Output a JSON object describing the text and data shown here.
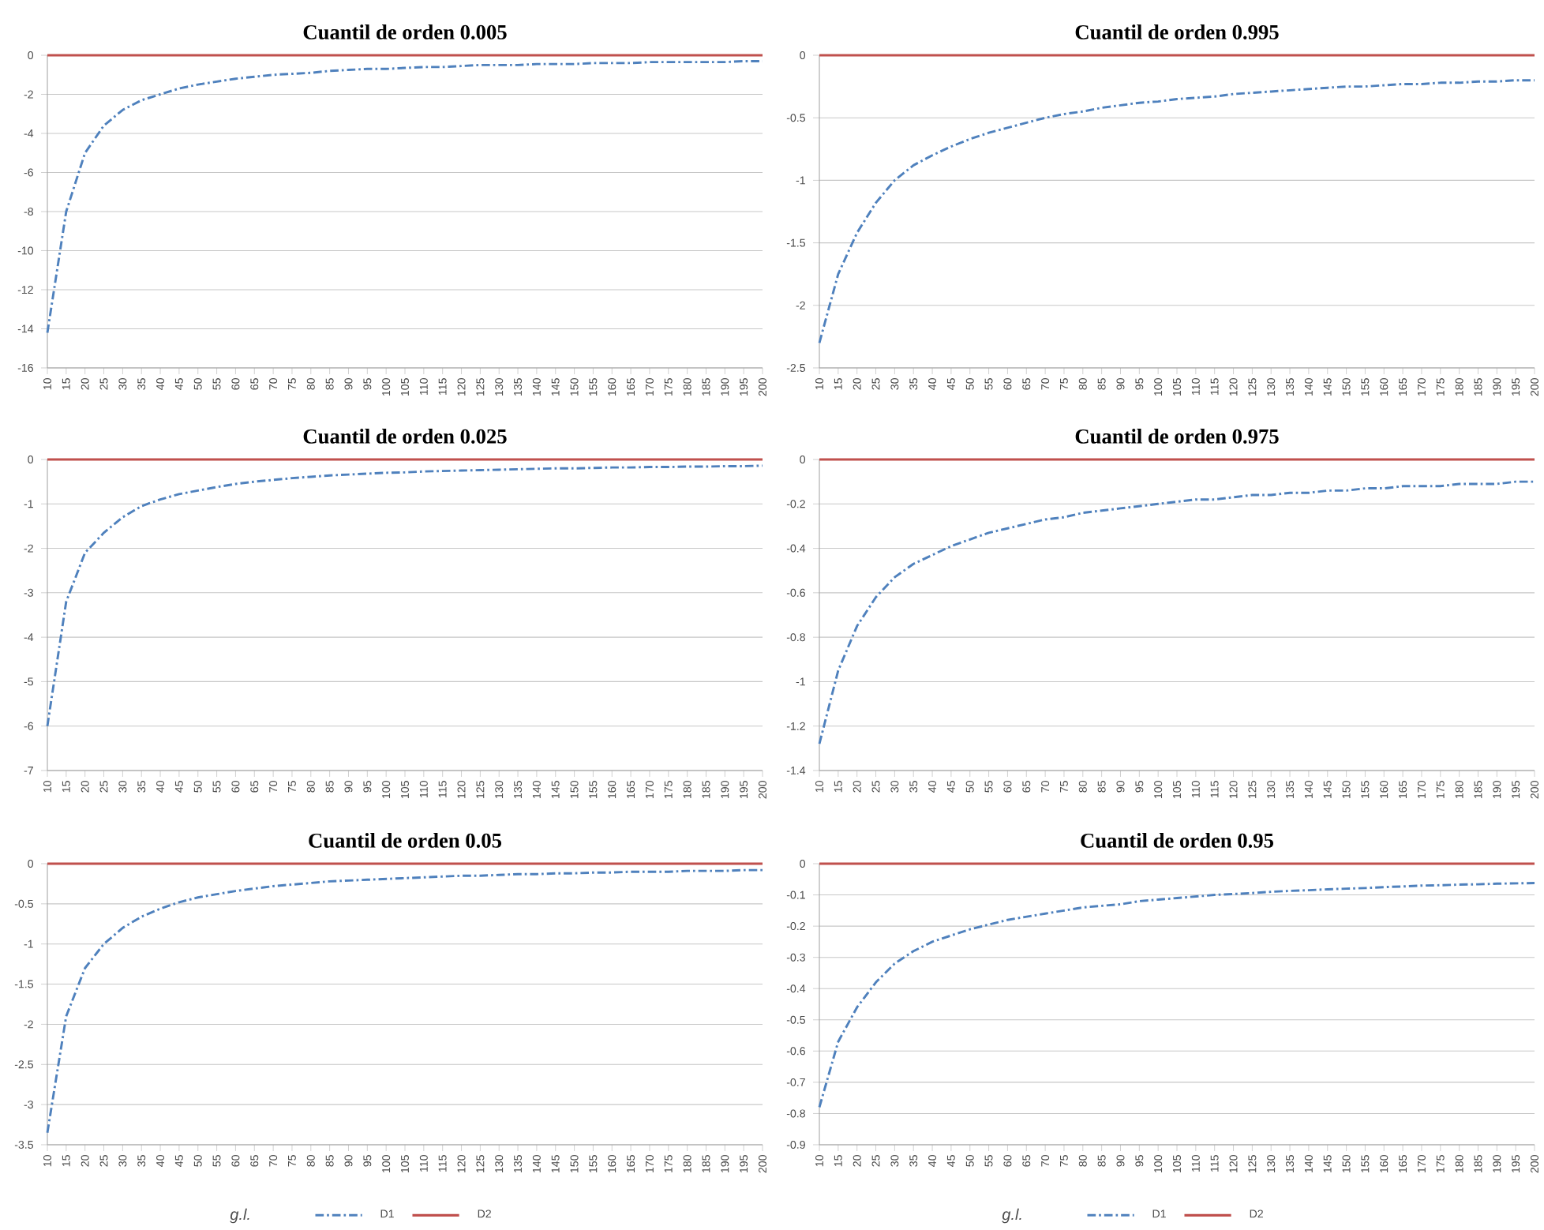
{
  "chart_data": [
    {
      "type": "line",
      "title": "Cuantil de orden 0.005",
      "categories": [
        "10",
        "15",
        "20",
        "25",
        "30",
        "35",
        "40",
        "45",
        "50",
        "55",
        "60",
        "65",
        "70",
        "75",
        "80",
        "85",
        "90",
        "95",
        "100",
        "105",
        "110",
        "115",
        "120",
        "125",
        "130",
        "135",
        "140",
        "145",
        "150",
        "155",
        "160",
        "165",
        "170",
        "175",
        "180",
        "185",
        "190",
        "195",
        "200"
      ],
      "ylim": [
        -16,
        0
      ],
      "yticks": [
        -16,
        -14,
        -12,
        -10,
        -8,
        -6,
        -4,
        -2,
        0
      ],
      "grid": "y",
      "series": [
        {
          "color": "#4f81bd",
          "line_style": "dashdot",
          "values": [
            -14.2,
            -8.0,
            -5.0,
            -3.6,
            -2.8,
            -2.3,
            -2.0,
            -1.7,
            -1.5,
            -1.35,
            -1.2,
            -1.1,
            -1.0,
            -0.95,
            -0.9,
            -0.8,
            -0.75,
            -0.7,
            -0.7,
            -0.65,
            -0.6,
            -0.6,
            -0.55,
            -0.5,
            -0.5,
            -0.5,
            -0.45,
            -0.45,
            -0.45,
            -0.4,
            -0.4,
            -0.4,
            -0.35,
            -0.35,
            -0.35,
            -0.35,
            -0.35,
            -0.3,
            -0.3
          ]
        },
        {
          "color": "#c0504d",
          "line_style": "solid",
          "values": [
            0,
            0,
            0,
            0,
            0,
            0,
            0,
            0,
            0,
            0,
            0,
            0,
            0,
            0,
            0,
            0,
            0,
            0,
            0,
            0,
            0,
            0,
            0,
            0,
            0,
            0,
            0,
            0,
            0,
            0,
            0,
            0,
            0,
            0,
            0,
            0,
            0,
            0,
            0
          ]
        }
      ]
    },
    {
      "type": "line",
      "title": "Cuantil de orden 0.995",
      "categories": [
        "10",
        "15",
        "20",
        "25",
        "30",
        "35",
        "40",
        "45",
        "50",
        "55",
        "60",
        "65",
        "70",
        "75",
        "80",
        "85",
        "90",
        "95",
        "100",
        "105",
        "110",
        "115",
        "120",
        "125",
        "130",
        "135",
        "140",
        "145",
        "150",
        "155",
        "160",
        "165",
        "170",
        "175",
        "180",
        "185",
        "190",
        "195",
        "200"
      ],
      "ylim": [
        -2.5,
        0
      ],
      "yticks": [
        -2.5,
        -2,
        -1.5,
        -1,
        -0.5,
        0
      ],
      "grid": "y",
      "series": [
        {
          "color": "#4f81bd",
          "line_style": "dashdot",
          "values": [
            -2.3,
            -1.75,
            -1.42,
            -1.18,
            -1.0,
            -0.88,
            -0.8,
            -0.73,
            -0.67,
            -0.62,
            -0.58,
            -0.54,
            -0.5,
            -0.47,
            -0.45,
            -0.42,
            -0.4,
            -0.38,
            -0.37,
            -0.35,
            -0.34,
            -0.33,
            -0.31,
            -0.3,
            -0.29,
            -0.28,
            -0.27,
            -0.26,
            -0.25,
            -0.25,
            -0.24,
            -0.23,
            -0.23,
            -0.22,
            -0.22,
            -0.21,
            -0.21,
            -0.2,
            -0.2
          ]
        },
        {
          "color": "#c0504d",
          "line_style": "solid",
          "values": [
            0,
            0,
            0,
            0,
            0,
            0,
            0,
            0,
            0,
            0,
            0,
            0,
            0,
            0,
            0,
            0,
            0,
            0,
            0,
            0,
            0,
            0,
            0,
            0,
            0,
            0,
            0,
            0,
            0,
            0,
            0,
            0,
            0,
            0,
            0,
            0,
            0,
            0,
            0
          ]
        }
      ]
    },
    {
      "type": "line",
      "title": "Cuantil de orden 0.025",
      "categories": [
        "10",
        "15",
        "20",
        "25",
        "30",
        "35",
        "40",
        "45",
        "50",
        "55",
        "60",
        "65",
        "70",
        "75",
        "80",
        "85",
        "90",
        "95",
        "100",
        "105",
        "110",
        "115",
        "120",
        "125",
        "130",
        "135",
        "140",
        "145",
        "150",
        "155",
        "160",
        "165",
        "170",
        "175",
        "180",
        "185",
        "190",
        "195",
        "200"
      ],
      "ylim": [
        -7,
        0
      ],
      "yticks": [
        -7,
        -6,
        -5,
        -4,
        -3,
        -2,
        -1,
        0
      ],
      "grid": "y",
      "series": [
        {
          "color": "#4f81bd",
          "line_style": "dashdot",
          "values": [
            -6.0,
            -3.2,
            -2.1,
            -1.65,
            -1.3,
            -1.05,
            -0.9,
            -0.78,
            -0.7,
            -0.62,
            -0.55,
            -0.5,
            -0.46,
            -0.42,
            -0.39,
            -0.36,
            -0.34,
            -0.32,
            -0.3,
            -0.29,
            -0.27,
            -0.26,
            -0.25,
            -0.24,
            -0.23,
            -0.22,
            -0.21,
            -0.2,
            -0.2,
            -0.19,
            -0.18,
            -0.18,
            -0.17,
            -0.17,
            -0.16,
            -0.16,
            -0.15,
            -0.15,
            -0.14
          ]
        },
        {
          "color": "#c0504d",
          "line_style": "solid",
          "values": [
            0,
            0,
            0,
            0,
            0,
            0,
            0,
            0,
            0,
            0,
            0,
            0,
            0,
            0,
            0,
            0,
            0,
            0,
            0,
            0,
            0,
            0,
            0,
            0,
            0,
            0,
            0,
            0,
            0,
            0,
            0,
            0,
            0,
            0,
            0,
            0,
            0,
            0,
            0
          ]
        }
      ]
    },
    {
      "type": "line",
      "title": "Cuantil de orden 0.975",
      "categories": [
        "10",
        "15",
        "20",
        "25",
        "30",
        "35",
        "40",
        "45",
        "50",
        "55",
        "60",
        "65",
        "70",
        "75",
        "80",
        "85",
        "90",
        "95",
        "100",
        "105",
        "110",
        "115",
        "120",
        "125",
        "130",
        "135",
        "140",
        "145",
        "150",
        "155",
        "160",
        "165",
        "170",
        "175",
        "180",
        "185",
        "190",
        "195",
        "200"
      ],
      "ylim": [
        -1.4,
        0
      ],
      "yticks": [
        -1.4,
        -1.2,
        -1,
        -0.8,
        -0.6,
        -0.4,
        -0.2,
        0
      ],
      "grid": "y",
      "series": [
        {
          "color": "#4f81bd",
          "line_style": "dashdot",
          "values": [
            -1.28,
            -0.95,
            -0.75,
            -0.62,
            -0.53,
            -0.47,
            -0.43,
            -0.39,
            -0.36,
            -0.33,
            -0.31,
            -0.29,
            -0.27,
            -0.26,
            -0.24,
            -0.23,
            -0.22,
            -0.21,
            -0.2,
            -0.19,
            -0.18,
            -0.18,
            -0.17,
            -0.16,
            -0.16,
            -0.15,
            -0.15,
            -0.14,
            -0.14,
            -0.13,
            -0.13,
            -0.12,
            -0.12,
            -0.12,
            -0.11,
            -0.11,
            -0.11,
            -0.1,
            -0.1
          ]
        },
        {
          "color": "#c0504d",
          "line_style": "solid",
          "values": [
            0,
            0,
            0,
            0,
            0,
            0,
            0,
            0,
            0,
            0,
            0,
            0,
            0,
            0,
            0,
            0,
            0,
            0,
            0,
            0,
            0,
            0,
            0,
            0,
            0,
            0,
            0,
            0,
            0,
            0,
            0,
            0,
            0,
            0,
            0,
            0,
            0,
            0,
            0
          ]
        }
      ]
    },
    {
      "type": "line",
      "title": "Cuantil de orden 0.05",
      "xlabel": "*g.l.*",
      "legend": "bottom",
      "categories": [
        "10",
        "15",
        "20",
        "25",
        "30",
        "35",
        "40",
        "45",
        "50",
        "55",
        "60",
        "65",
        "70",
        "75",
        "80",
        "85",
        "90",
        "95",
        "100",
        "105",
        "110",
        "115",
        "120",
        "125",
        "130",
        "135",
        "140",
        "145",
        "150",
        "155",
        "160",
        "165",
        "170",
        "175",
        "180",
        "185",
        "190",
        "195",
        "200"
      ],
      "ylim": [
        -3.5,
        0
      ],
      "yticks": [
        -3.5,
        -3,
        -2.5,
        -2,
        -1.5,
        -1,
        -0.5,
        0
      ],
      "grid": "y",
      "series": [
        {
          "name": "D1",
          "color": "#4f81bd",
          "line_style": "dashdot",
          "values": [
            -3.35,
            -1.9,
            -1.3,
            -1.0,
            -0.8,
            -0.66,
            -0.56,
            -0.48,
            -0.42,
            -0.38,
            -0.34,
            -0.31,
            -0.28,
            -0.26,
            -0.24,
            -0.22,
            -0.21,
            -0.2,
            -0.19,
            -0.18,
            -0.17,
            -0.16,
            -0.15,
            -0.15,
            -0.14,
            -0.13,
            -0.13,
            -0.12,
            -0.12,
            -0.11,
            -0.11,
            -0.1,
            -0.1,
            -0.1,
            -0.09,
            -0.09,
            -0.09,
            -0.08,
            -0.08
          ]
        },
        {
          "name": "D2",
          "color": "#c0504d",
          "line_style": "solid",
          "values": [
            0,
            0,
            0,
            0,
            0,
            0,
            0,
            0,
            0,
            0,
            0,
            0,
            0,
            0,
            0,
            0,
            0,
            0,
            0,
            0,
            0,
            0,
            0,
            0,
            0,
            0,
            0,
            0,
            0,
            0,
            0,
            0,
            0,
            0,
            0,
            0,
            0,
            0,
            0
          ]
        }
      ]
    },
    {
      "type": "line",
      "title": "Cuantil de orden 0.95",
      "xlabel": "*g.l.*",
      "legend": "bottom",
      "categories": [
        "10",
        "15",
        "20",
        "25",
        "30",
        "35",
        "40",
        "45",
        "50",
        "55",
        "60",
        "65",
        "70",
        "75",
        "80",
        "85",
        "90",
        "95",
        "100",
        "105",
        "110",
        "115",
        "120",
        "125",
        "130",
        "135",
        "140",
        "145",
        "150",
        "155",
        "160",
        "165",
        "170",
        "175",
        "180",
        "185",
        "190",
        "195",
        "200"
      ],
      "ylim": [
        -0.9,
        0
      ],
      "yticks": [
        -0.9,
        -0.8,
        -0.7,
        -0.6,
        -0.5,
        -0.4,
        -0.3,
        -0.2,
        -0.1,
        0
      ],
      "grid": "y",
      "series": [
        {
          "name": "D1",
          "color": "#4f81bd",
          "line_style": "dashdot",
          "values": [
            -0.78,
            -0.57,
            -0.46,
            -0.38,
            -0.32,
            -0.28,
            -0.25,
            -0.23,
            -0.21,
            -0.195,
            -0.18,
            -0.17,
            -0.16,
            -0.15,
            -0.14,
            -0.135,
            -0.13,
            -0.12,
            -0.115,
            -0.11,
            -0.105,
            -0.1,
            -0.097,
            -0.094,
            -0.09,
            -0.087,
            -0.085,
            -0.082,
            -0.08,
            -0.078,
            -0.075,
            -0.073,
            -0.07,
            -0.069,
            -0.067,
            -0.066,
            -0.064,
            -0.063,
            -0.062
          ]
        },
        {
          "name": "D2",
          "color": "#c0504d",
          "line_style": "solid",
          "values": [
            0,
            0,
            0,
            0,
            0,
            0,
            0,
            0,
            0,
            0,
            0,
            0,
            0,
            0,
            0,
            0,
            0,
            0,
            0,
            0,
            0,
            0,
            0,
            0,
            0,
            0,
            0,
            0,
            0,
            0,
            0,
            0,
            0,
            0,
            0,
            0,
            0,
            0,
            0
          ]
        }
      ]
    }
  ]
}
